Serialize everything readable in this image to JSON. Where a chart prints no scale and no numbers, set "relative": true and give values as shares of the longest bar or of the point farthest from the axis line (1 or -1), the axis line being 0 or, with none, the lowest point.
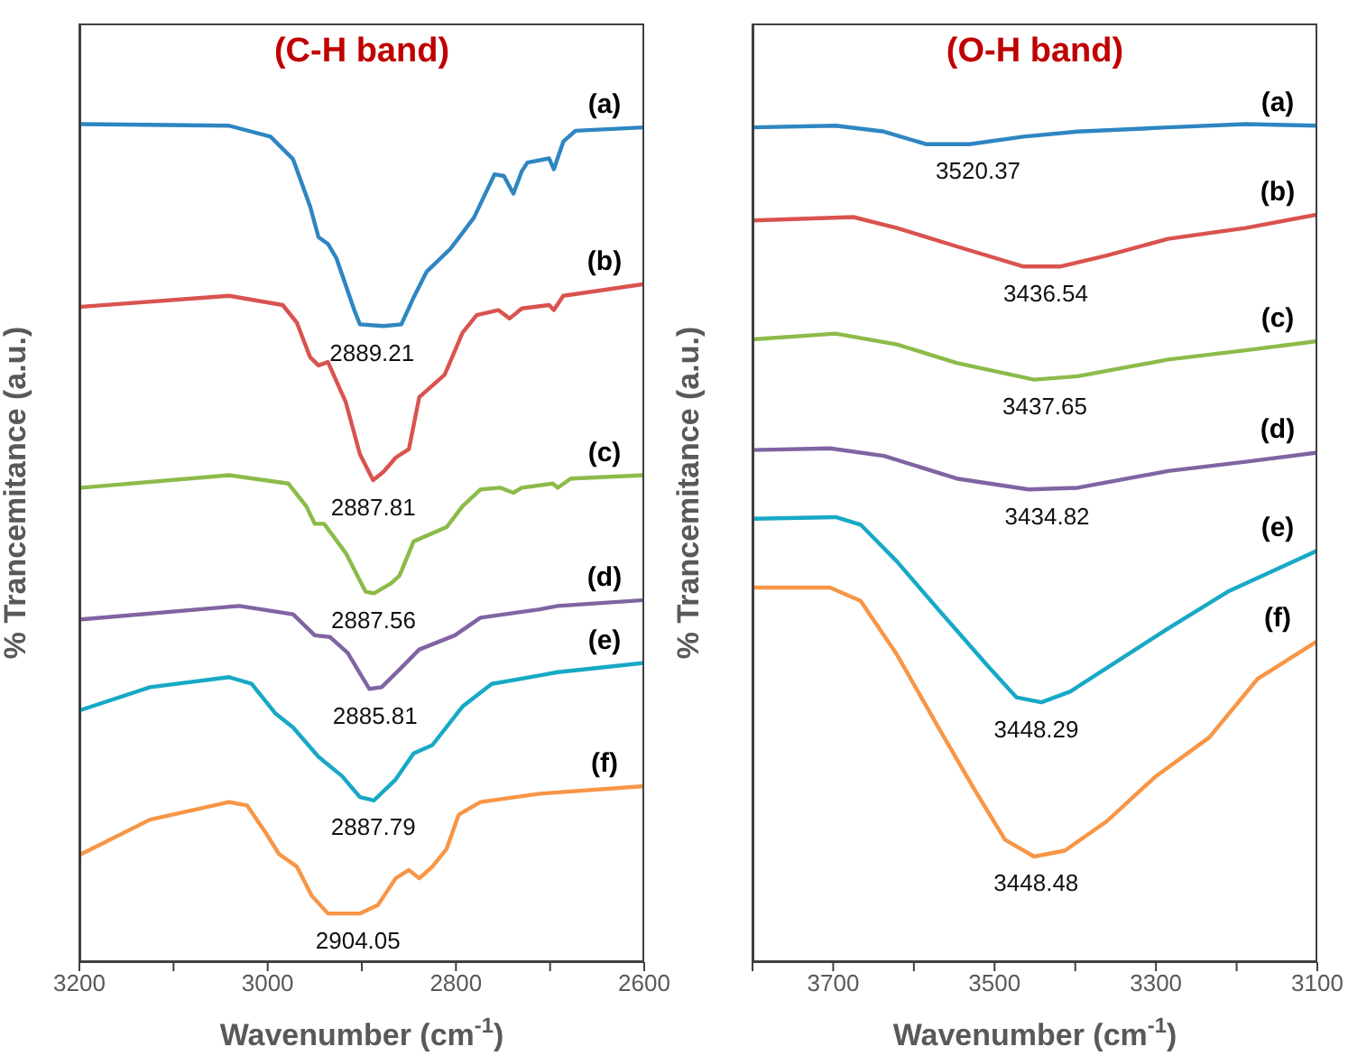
{
  "chart_data": [
    {
      "type": "line",
      "title": "(C-H band)",
      "xlabel": "Wavenumber (cm$^{-1}$)",
      "ylabel": "% Trancemitance (a.u.)",
      "relative": true,
      "xlim": [
        3200,
        2600
      ],
      "xticks": [
        3200,
        {
          "value": 3100,
          "label": null
        },
        3000,
        {
          "value": 2900,
          "label": null
        },
        2800,
        {
          "value": 2700,
          "label": null
        },
        2600
      ],
      "grid": false,
      "legend": false,
      "marker": "none",
      "line_style": "solid",
      "series": [
        {
          "name": "(a)",
          "color": "#2e86c1",
          "x": [
            3198,
            3041,
            2997,
            2973,
            2955,
            2946,
            2936,
            2927,
            2908,
            2902,
            2877,
            2858,
            2845,
            2831,
            2806,
            2781,
            2759,
            2749,
            2739,
            2730,
            2724,
            2701,
            2696,
            2686,
            2673,
            2600
          ],
          "values": [
            1.0,
            0.998,
            0.985,
            0.958,
            0.902,
            0.865,
            0.857,
            0.84,
            0.778,
            0.761,
            0.759,
            0.761,
            0.793,
            0.824,
            0.851,
            0.888,
            0.94,
            0.938,
            0.917,
            0.944,
            0.954,
            0.959,
            0.946,
            0.979,
            0.992,
            0.996
          ]
        },
        {
          "name": "(b)",
          "color": "#d9534f",
          "x": [
            3198,
            3041,
            2984,
            2969,
            2955,
            2946,
            2936,
            2917,
            2902,
            2888,
            2877,
            2864,
            2850,
            2839,
            2812,
            2793,
            2778,
            2755,
            2743,
            2730,
            2701,
            2696,
            2686,
            2600
          ],
          "values": [
            0.782,
            0.795,
            0.784,
            0.763,
            0.722,
            0.712,
            0.716,
            0.668,
            0.606,
            0.575,
            0.585,
            0.602,
            0.612,
            0.674,
            0.701,
            0.751,
            0.772,
            0.778,
            0.768,
            0.78,
            0.784,
            0.778,
            0.795,
            0.809
          ]
        },
        {
          "name": "(c)",
          "color": "#8cbb4a",
          "x": [
            3198,
            3041,
            2978,
            2959,
            2950,
            2940,
            2917,
            2896,
            2887,
            2869,
            2860,
            2845,
            2810,
            2793,
            2774,
            2753,
            2739,
            2730,
            2697,
            2692,
            2678,
            2600
          ],
          "values": [
            0.566,
            0.581,
            0.571,
            0.544,
            0.523,
            0.523,
            0.488,
            0.442,
            0.44,
            0.452,
            0.461,
            0.502,
            0.519,
            0.544,
            0.564,
            0.566,
            0.56,
            0.566,
            0.571,
            0.566,
            0.577,
            0.581
          ]
        },
        {
          "name": "(d)",
          "color": "#8064a2",
          "x": [
            3198,
            3030,
            2973,
            2950,
            2934,
            2915,
            2892,
            2879,
            2860,
            2839,
            2801,
            2774,
            2711,
            2692,
            2600
          ],
          "values": [
            0.409,
            0.425,
            0.415,
            0.39,
            0.388,
            0.369,
            0.326,
            0.328,
            0.349,
            0.373,
            0.39,
            0.411,
            0.421,
            0.425,
            0.432
          ]
        },
        {
          "name": "(e)",
          "color": "#17a9c6",
          "x": [
            3198,
            3125,
            3041,
            3017,
            2992,
            2973,
            2946,
            2921,
            2902,
            2887,
            2864,
            2845,
            2825,
            2793,
            2762,
            2711,
            2692,
            2600
          ],
          "values": [
            0.301,
            0.328,
            0.34,
            0.332,
            0.297,
            0.28,
            0.245,
            0.222,
            0.197,
            0.193,
            0.218,
            0.249,
            0.259,
            0.305,
            0.332,
            0.342,
            0.346,
            0.357
          ]
        },
        {
          "name": "(f)",
          "color": "#f79646",
          "x": [
            3198,
            3125,
            3041,
            3022,
            3003,
            2988,
            2969,
            2953,
            2936,
            2902,
            2883,
            2864,
            2850,
            2839,
            2825,
            2810,
            2797,
            2774,
            2711,
            2600
          ],
          "values": [
            0.129,
            0.17,
            0.191,
            0.187,
            0.156,
            0.129,
            0.114,
            0.079,
            0.058,
            0.058,
            0.068,
            0.1,
            0.11,
            0.1,
            0.114,
            0.135,
            0.176,
            0.191,
            0.201,
            0.21
          ]
        }
      ],
      "annotations": [
        {
          "text": "2889.21",
          "x": 2889.21,
          "y": 0.759
        },
        {
          "text": "2887.81",
          "x": 2887.81,
          "y": 0.575
        },
        {
          "text": "2887.56",
          "x": 2887.56,
          "y": 0.44
        },
        {
          "text": "2885.81",
          "x": 2885.81,
          "y": 0.326
        },
        {
          "text": "2887.79",
          "x": 2887.79,
          "y": 0.193
        },
        {
          "text": "2904.05",
          "x": 2904.05,
          "y": 0.058
        }
      ]
    },
    {
      "type": "line",
      "title": "(O-H band)",
      "xlabel": "Wavenumber (cm$^{-1}$)",
      "ylabel": "% Trancemitance (a.u.)",
      "relative": true,
      "xlim": [
        3800,
        3100
      ],
      "xticks": [
        {
          "value": 3800,
          "label": null
        },
        3700,
        {
          "value": 3600,
          "label": null
        },
        3500,
        {
          "value": 3400,
          "label": null
        },
        3300,
        {
          "value": 3200,
          "label": null
        },
        3100
      ],
      "grid": false,
      "legend": false,
      "marker": "none",
      "line_style": "solid",
      "series": [
        {
          "name": "(a)",
          "color": "#2e86c1",
          "x": [
            3800,
            3697,
            3637,
            3585,
            3531,
            3464,
            3397,
            3285,
            3189,
            3100
          ],
          "values": [
            0.996,
            0.998,
            0.991,
            0.976,
            0.976,
            0.985,
            0.991,
            0.996,
            1.0,
            0.998
          ]
        },
        {
          "name": "(b)",
          "color": "#d9534f",
          "x": [
            3800,
            3675,
            3621,
            3547,
            3464,
            3419,
            3361,
            3285,
            3189,
            3100
          ],
          "values": [
            0.885,
            0.889,
            0.876,
            0.854,
            0.83,
            0.83,
            0.843,
            0.863,
            0.876,
            0.892
          ]
        },
        {
          "name": "(c)",
          "color": "#8cbb4a",
          "x": [
            3800,
            3697,
            3621,
            3547,
            3451,
            3397,
            3285,
            3189,
            3100
          ],
          "values": [
            0.743,
            0.75,
            0.737,
            0.715,
            0.695,
            0.699,
            0.719,
            0.73,
            0.741
          ]
        },
        {
          "name": "(d)",
          "color": "#8064a2",
          "x": [
            3800,
            3704,
            3637,
            3547,
            3458,
            3397,
            3285,
            3189,
            3100
          ],
          "values": [
            0.611,
            0.613,
            0.604,
            0.577,
            0.564,
            0.566,
            0.586,
            0.597,
            0.608
          ]
        },
        {
          "name": "(e)",
          "color": "#17a9c6",
          "x": [
            3800,
            3697,
            3666,
            3621,
            3569,
            3509,
            3473,
            3442,
            3406,
            3345,
            3285,
            3211,
            3100
          ],
          "values": [
            0.529,
            0.531,
            0.522,
            0.478,
            0.42,
            0.354,
            0.316,
            0.31,
            0.323,
            0.361,
            0.398,
            0.442,
            0.491
          ]
        },
        {
          "name": "(f)",
          "color": "#f79646",
          "x": [
            3800,
            3704,
            3666,
            3621,
            3569,
            3525,
            3487,
            3451,
            3413,
            3361,
            3301,
            3234,
            3174,
            3100
          ],
          "values": [
            0.447,
            0.447,
            0.431,
            0.367,
            0.279,
            0.206,
            0.146,
            0.126,
            0.133,
            0.168,
            0.221,
            0.268,
            0.338,
            0.383
          ]
        }
      ],
      "annotations": [
        {
          "text": "3520.37",
          "x": 3520.37,
          "y": 0.976
        },
        {
          "text": "3436.54",
          "x": 3436.54,
          "y": 0.83
        },
        {
          "text": "3437.65",
          "x": 3437.65,
          "y": 0.695
        },
        {
          "text": "3434.82",
          "x": 3434.82,
          "y": 0.564
        },
        {
          "text": "3448.29",
          "x": 3448.29,
          "y": 0.31
        },
        {
          "text": "3448.48",
          "x": 3448.48,
          "y": 0.126
        }
      ]
    }
  ]
}
